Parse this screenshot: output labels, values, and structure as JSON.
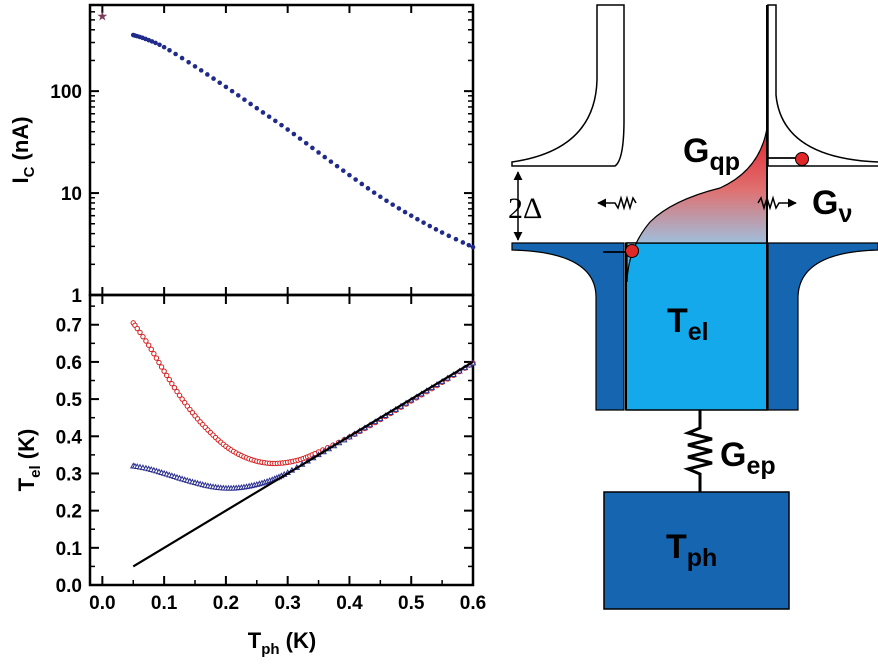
{
  "chart_data": [
    {
      "type": "scatter",
      "yscale": "log",
      "ylim": [
        1,
        700
      ],
      "xlim": [
        -0.02,
        0.6
      ],
      "ylabel": {
        "main": "I",
        "sub": "C",
        "unit": " (nA)"
      },
      "ytick_labels": [
        "1",
        "10",
        "100"
      ],
      "ytick_values": [
        1,
        10,
        100
      ],
      "marker_point": {
        "x": 0.0,
        "y": 550,
        "color": "#7b3f5e"
      },
      "series": [
        {
          "color": "#1f2a8a",
          "points": [
            [
              0.05,
              355
            ],
            [
              0.07,
              325
            ],
            [
              0.1,
              270
            ],
            [
              0.15,
              175
            ],
            [
              0.2,
              110
            ],
            [
              0.25,
              68
            ],
            [
              0.3,
              42
            ],
            [
              0.35,
              25
            ],
            [
              0.4,
              15
            ],
            [
              0.45,
              9.2
            ],
            [
              0.5,
              6.0
            ],
            [
              0.55,
              4.1
            ],
            [
              0.6,
              2.95
            ]
          ]
        }
      ]
    },
    {
      "type": "line",
      "ylim": [
        0.0,
        0.78
      ],
      "xlim": [
        -0.02,
        0.6
      ],
      "xlabel": {
        "main": "T",
        "sub": "ph",
        "unit": " (K)"
      },
      "ylabel": {
        "main": "T",
        "sub": "el",
        "unit": " (K)"
      },
      "xtick_labels": [
        "0.0",
        "0.1",
        "0.2",
        "0.3",
        "0.4",
        "0.5",
        "0.6"
      ],
      "xtick_values": [
        0.0,
        0.1,
        0.2,
        0.3,
        0.4,
        0.5,
        0.6
      ],
      "ytick_labels": [
        "0.0",
        "0.1",
        "0.2",
        "0.3",
        "0.4",
        "0.5",
        "0.6",
        "0.7"
      ],
      "ytick_values": [
        0.0,
        0.1,
        0.2,
        0.3,
        0.4,
        0.5,
        0.6,
        0.7
      ],
      "series": [
        {
          "color": "#d62020",
          "marker": "circle",
          "points": [
            [
              0.05,
              0.705
            ],
            [
              0.075,
              0.645
            ],
            [
              0.1,
              0.575
            ],
            [
              0.125,
              0.51
            ],
            [
              0.15,
              0.455
            ],
            [
              0.175,
              0.41
            ],
            [
              0.2,
              0.373
            ],
            [
              0.225,
              0.348
            ],
            [
              0.25,
              0.333
            ],
            [
              0.275,
              0.327
            ],
            [
              0.3,
              0.33
            ],
            [
              0.325,
              0.34
            ],
            [
              0.35,
              0.358
            ],
            [
              0.4,
              0.398
            ],
            [
              0.45,
              0.445
            ],
            [
              0.5,
              0.495
            ],
            [
              0.55,
              0.545
            ],
            [
              0.6,
              0.597
            ]
          ]
        },
        {
          "color": "#2a2f8f",
          "marker": "triangle",
          "points": [
            [
              0.05,
              0.32
            ],
            [
              0.075,
              0.312
            ],
            [
              0.1,
              0.3
            ],
            [
              0.125,
              0.287
            ],
            [
              0.15,
              0.275
            ],
            [
              0.175,
              0.265
            ],
            [
              0.2,
              0.26
            ],
            [
              0.225,
              0.262
            ],
            [
              0.25,
              0.27
            ],
            [
              0.275,
              0.283
            ],
            [
              0.3,
              0.302
            ],
            [
              0.35,
              0.35
            ],
            [
              0.4,
              0.398
            ],
            [
              0.45,
              0.447
            ],
            [
              0.5,
              0.497
            ],
            [
              0.55,
              0.547
            ],
            [
              0.6,
              0.597
            ]
          ]
        },
        {
          "color": "#000000",
          "marker": "none",
          "points": [
            [
              0.05,
              0.05
            ],
            [
              0.6,
              0.6
            ]
          ]
        }
      ]
    }
  ],
  "diagram": {
    "labels": {
      "gap_label": "2Δ",
      "g_qp": {
        "main": "G",
        "sub": "qp"
      },
      "g_nu": {
        "main": "G",
        "sub": "ν"
      },
      "g_ep": {
        "main": "G",
        "sub": "ep"
      },
      "t_el": {
        "main": "T",
        "sub": "el"
      },
      "t_ph": {
        "main": "T",
        "sub": "ph"
      }
    },
    "colors": {
      "dark_blue": "#1565b0",
      "light_blue": "#13a9ea",
      "red": "#e3202a",
      "dot": "#e02828"
    }
  }
}
